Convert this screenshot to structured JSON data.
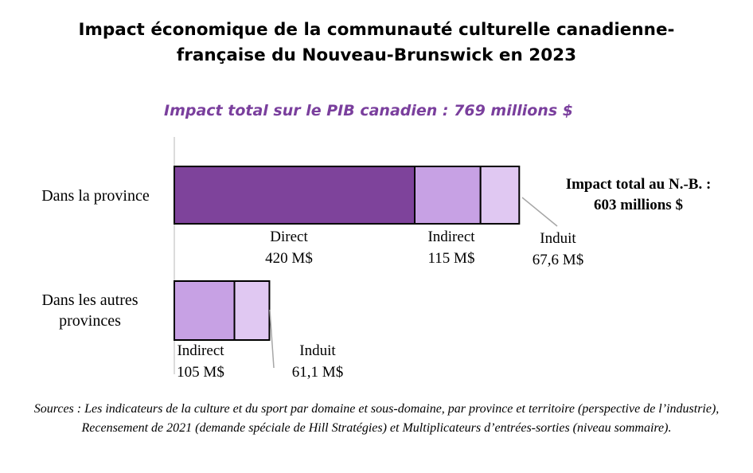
{
  "title_line1": "Impact économique de la communauté culturelle canadienne-",
  "title_line2": "française du Nouveau-Brunswick en 2023",
  "subtitle": "Impact total sur le PIB canadien : 769 millions $",
  "sources": "Sources : Les indicateurs de la culture et du sport par domaine et sous-domaine, par province et territoire (perspective de l’industrie), Recensement de 2021 (demande spéciale de Hill Stratégies) et Multiplicateurs d’entrées-sorties (niveau sommaire).",
  "colors": {
    "direct": "#7e439b",
    "indirect": "#c7a1e4",
    "induit": "#e0c8f2",
    "title_accent": "#7a3f9d",
    "leader": "#a6a6a6"
  },
  "chart_data": {
    "type": "bar",
    "orientation": "horizontal",
    "stacked": true,
    "unit": "M$",
    "categories": [
      {
        "label_lines": [
          "Dans la province"
        ]
      },
      {
        "label_lines": [
          "Dans les autres",
          "provinces"
        ]
      }
    ],
    "series": [
      {
        "name": "Direct",
        "values": [
          420,
          0
        ],
        "labels": [
          "420 M$",
          ""
        ]
      },
      {
        "name": "Indirect",
        "values": [
          115,
          105
        ],
        "labels": [
          "115 M$",
          "105 M$"
        ]
      },
      {
        "name": "Induit",
        "values": [
          67.6,
          61.1
        ],
        "labels": [
          "67,6 M$",
          "61,1 M$"
        ]
      }
    ],
    "annotations": [
      {
        "text_lines": [
          "Impact total au N.-B. :",
          "603 millions $"
        ]
      }
    ]
  }
}
